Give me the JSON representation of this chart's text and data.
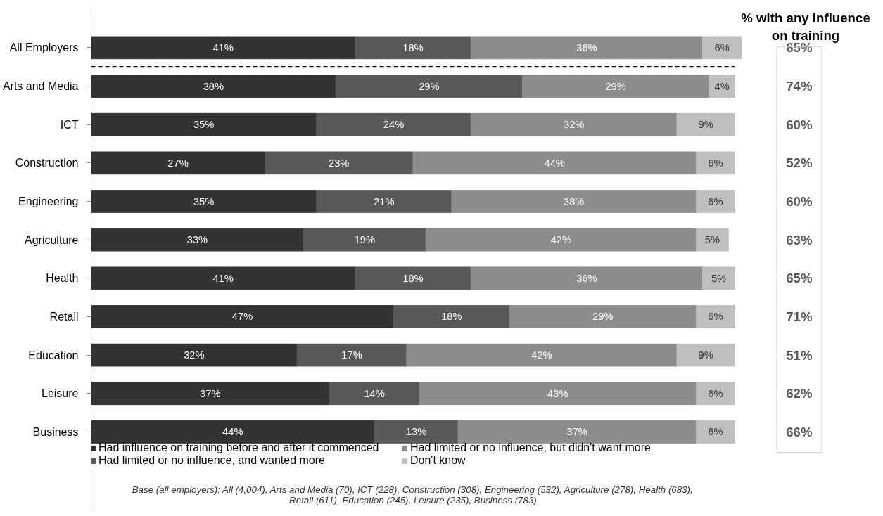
{
  "chart_data": {
    "type": "bar",
    "orientation": "horizontal",
    "stacked": true,
    "legend": "bottom",
    "grid": false,
    "tick_labels": "y",
    "categories": [
      "All Employers",
      "Arts and Media",
      "ICT",
      "Construction",
      "Engineering",
      "Agriculture",
      "Health",
      "Retail",
      "Education",
      "Leisure",
      "Business"
    ],
    "series": [
      {
        "name": "Had influence on training before and after it commenced",
        "color": "#333333",
        "values": [
          41,
          38,
          35,
          27,
          35,
          33,
          41,
          47,
          32,
          37,
          44
        ],
        "value_labels": [
          "41%",
          "38%",
          "35%",
          "27%",
          "35%",
          "33%",
          "41%",
          "47%",
          "32%",
          "37%",
          "44%"
        ]
      },
      {
        "name": "Had limited or no influence, and wanted more",
        "color": "#595959",
        "values": [
          18,
          29,
          24,
          23,
          21,
          19,
          18,
          18,
          17,
          14,
          13
        ],
        "value_labels": [
          "18%",
          "29%",
          "24%",
          "23%",
          "21%",
          "19%",
          "18%",
          "18%",
          "17%",
          "14%",
          "13%"
        ]
      },
      {
        "name": "Had limited or no influence, but didn't want more",
        "color": "#8c8c8c",
        "values": [
          36,
          29,
          32,
          44,
          38,
          42,
          36,
          29,
          42,
          43,
          37
        ],
        "value_labels": [
          "36%",
          "29%",
          "32%",
          "44%",
          "38%",
          "42%",
          "36%",
          "29%",
          "42%",
          "43%",
          "37%"
        ]
      },
      {
        "name": "Don't know",
        "color": "#bfbfbf",
        "values": [
          6,
          4,
          9,
          6,
          6,
          5,
          5,
          6,
          9,
          6,
          6
        ],
        "value_labels": [
          "6%",
          "4%",
          "9%",
          "6%",
          "6%",
          "5%",
          "5%",
          "6%",
          "9%",
          "6%",
          "6%"
        ]
      }
    ],
    "annotations": [
      "% with any influence on training",
      "65%",
      "74%",
      "60%",
      "52%",
      "60%",
      "63%",
      "65%",
      "71%",
      "51%",
      "62%",
      "66%",
      "Base (all employers): All (4,004), Arts and Media (70), ICT (228), Construction (308), Engineering (532), Agriculture (278), Health (683),\nRetail (611), Education (245), Leisure (235), Business (783)"
    ]
  }
}
